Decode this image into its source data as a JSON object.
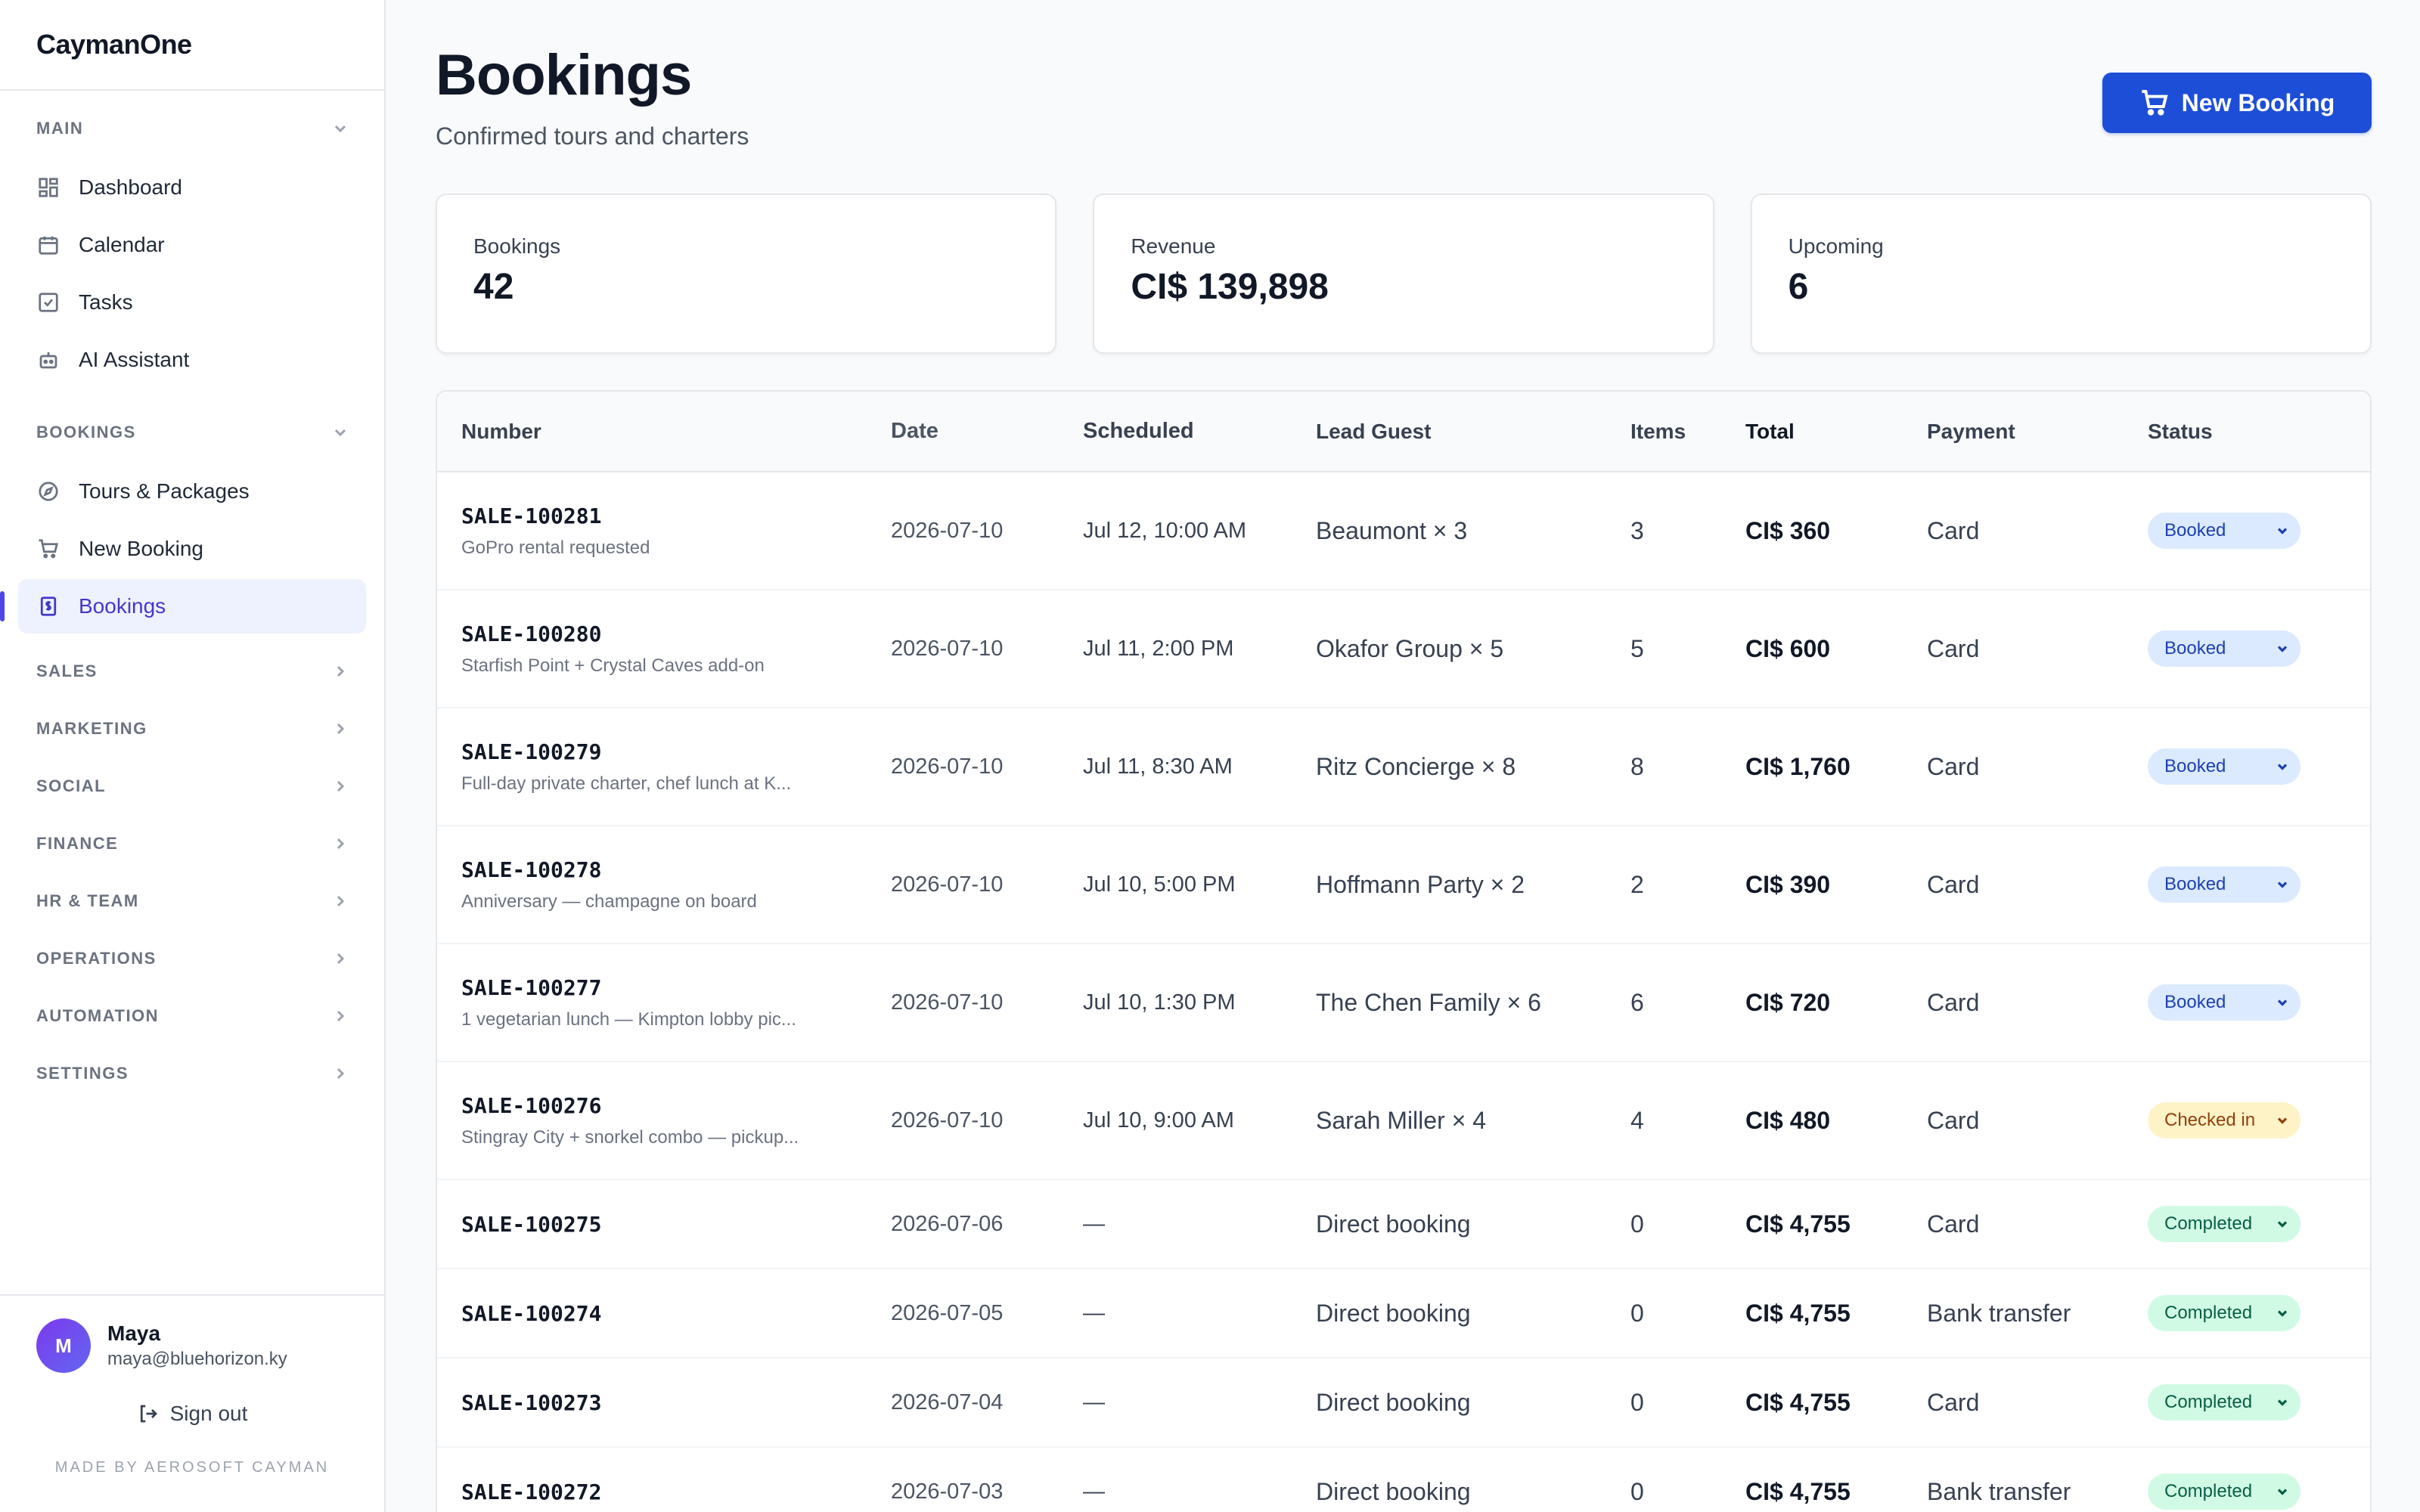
{
  "app": {
    "brand": "CaymanOne"
  },
  "sidebar": {
    "main_section": "MAIN",
    "main_items": [
      {
        "label": "Dashboard",
        "icon": "dashboard-icon"
      },
      {
        "label": "Calendar",
        "icon": "calendar-icon"
      },
      {
        "label": "Tasks",
        "icon": "tasks-icon"
      },
      {
        "label": "AI Assistant",
        "icon": "robot-icon"
      }
    ],
    "bookings_section": "BOOKINGS",
    "bookings_items": [
      {
        "label": "Tours & Packages",
        "icon": "compass-icon"
      },
      {
        "label": "New Booking",
        "icon": "cart-icon"
      },
      {
        "label": "Bookings",
        "icon": "receipt-icon",
        "active": true
      }
    ],
    "collapsed_sections": [
      "SALES",
      "MARKETING",
      "SOCIAL",
      "FINANCE",
      "HR & TEAM",
      "OPERATIONS",
      "AUTOMATION",
      "SETTINGS"
    ],
    "user": {
      "initial": "M",
      "name": "Maya",
      "email": "maya@bluehorizon.ky"
    },
    "signout_label": "Sign out",
    "footer": "MADE BY AEROSOFT CAYMAN"
  },
  "header": {
    "title": "Bookings",
    "subtitle": "Confirmed tours and charters",
    "new_button": "New Booking"
  },
  "stats": [
    {
      "label": "Bookings",
      "value": "42"
    },
    {
      "label": "Revenue",
      "value": "CI$ 139,898"
    },
    {
      "label": "Upcoming",
      "value": "6"
    }
  ],
  "table": {
    "columns": [
      "Number",
      "Date",
      "Scheduled",
      "Lead Guest",
      "Items",
      "Total",
      "Payment",
      "Status"
    ],
    "rows": [
      {
        "number": "SALE-100281",
        "note": "GoPro rental requested",
        "date": "2026-07-10",
        "scheduled": "Jul 12, 10:00 AM",
        "guest": "Beaumont × 3",
        "items": "3",
        "total": "CI$ 360",
        "payment": "Card",
        "status": "Booked"
      },
      {
        "number": "SALE-100280",
        "note": "Starfish Point + Crystal Caves add-on",
        "date": "2026-07-10",
        "scheduled": "Jul 11, 2:00 PM",
        "guest": "Okafor Group × 5",
        "items": "5",
        "total": "CI$ 600",
        "payment": "Card",
        "status": "Booked"
      },
      {
        "number": "SALE-100279",
        "note": "Full-day private charter, chef lunch at K...",
        "date": "2026-07-10",
        "scheduled": "Jul 11, 8:30 AM",
        "guest": "Ritz Concierge × 8",
        "items": "8",
        "total": "CI$ 1,760",
        "payment": "Card",
        "status": "Booked"
      },
      {
        "number": "SALE-100278",
        "note": "Anniversary — champagne on board",
        "date": "2026-07-10",
        "scheduled": "Jul 10, 5:00 PM",
        "guest": "Hoffmann Party × 2",
        "items": "2",
        "total": "CI$ 390",
        "payment": "Card",
        "status": "Booked"
      },
      {
        "number": "SALE-100277",
        "note": "1 vegetarian lunch — Kimpton lobby pic...",
        "date": "2026-07-10",
        "scheduled": "Jul 10, 1:30 PM",
        "guest": "The Chen Family × 6",
        "items": "6",
        "total": "CI$ 720",
        "payment": "Card",
        "status": "Booked"
      },
      {
        "number": "SALE-100276",
        "note": "Stingray City + snorkel combo — pickup...",
        "date": "2026-07-10",
        "scheduled": "Jul 10, 9:00 AM",
        "guest": "Sarah Miller × 4",
        "items": "4",
        "total": "CI$ 480",
        "payment": "Card",
        "status": "Checked in"
      },
      {
        "number": "SALE-100275",
        "note": "",
        "date": "2026-07-06",
        "scheduled": "—",
        "guest": "Direct booking",
        "items": "0",
        "total": "CI$ 4,755",
        "payment": "Card",
        "status": "Completed"
      },
      {
        "number": "SALE-100274",
        "note": "",
        "date": "2026-07-05",
        "scheduled": "—",
        "guest": "Direct booking",
        "items": "0",
        "total": "CI$ 4,755",
        "payment": "Bank transfer",
        "status": "Completed"
      },
      {
        "number": "SALE-100273",
        "note": "",
        "date": "2026-07-04",
        "scheduled": "—",
        "guest": "Direct booking",
        "items": "0",
        "total": "CI$ 4,755",
        "payment": "Card",
        "status": "Completed"
      },
      {
        "number": "SALE-100272",
        "note": "",
        "date": "2026-07-03",
        "scheduled": "—",
        "guest": "Direct booking",
        "items": "0",
        "total": "CI$ 4,755",
        "payment": "Bank transfer",
        "status": "Completed"
      }
    ]
  },
  "colors": {
    "primary": "#1d4ed8",
    "active_nav": "#4338ca",
    "booked": "#dbeafe",
    "checked_in": "#fef3c7",
    "completed": "#d1fae5"
  }
}
